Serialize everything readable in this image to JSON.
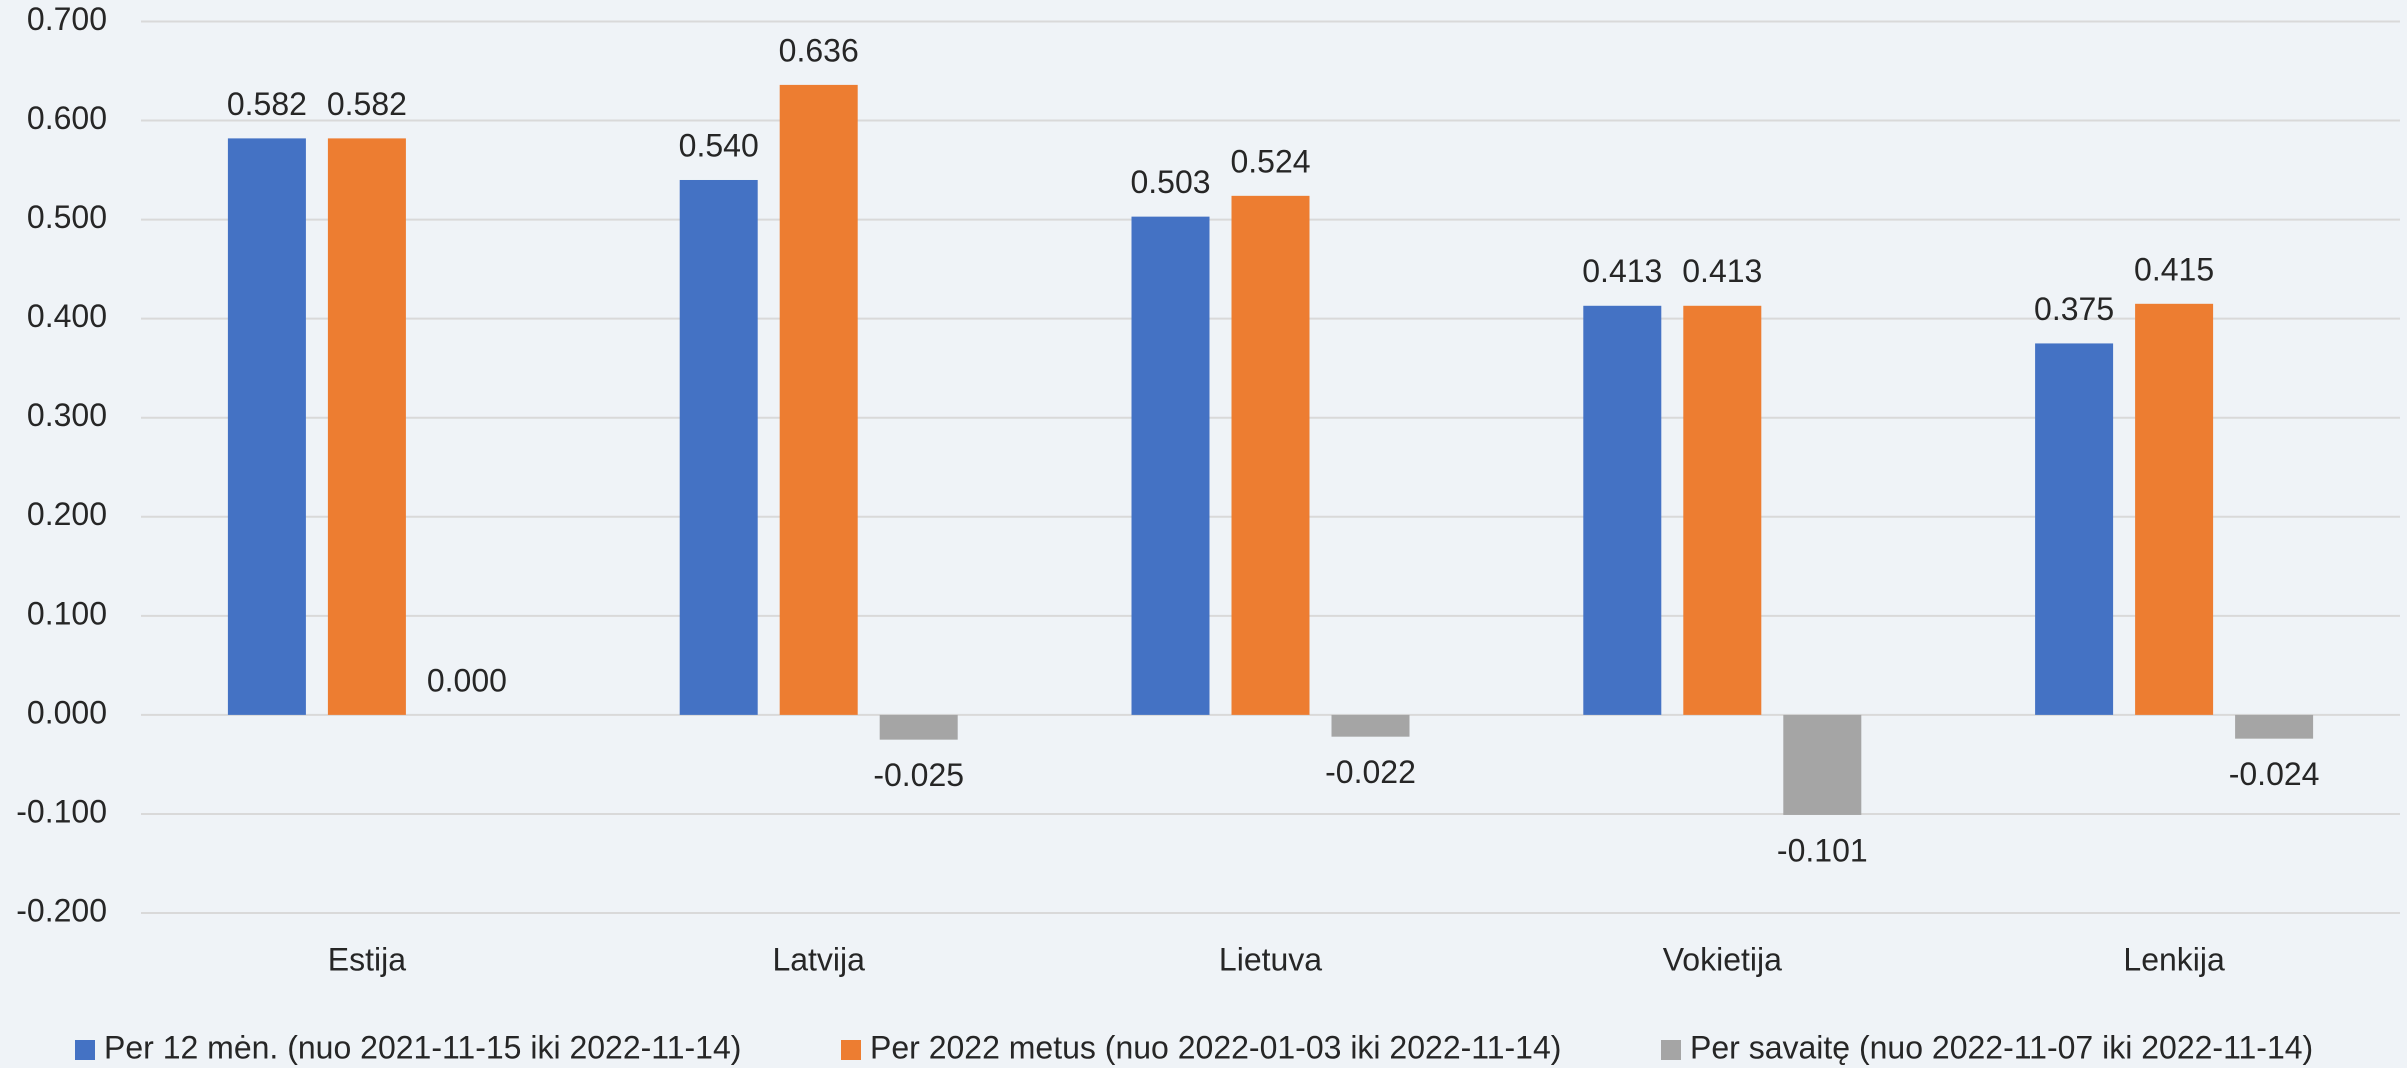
{
  "chart_data": {
    "type": "bar",
    "categories": [
      "Estija",
      "Latvija",
      "Lietuva",
      "Vokietija",
      "Lenkija"
    ],
    "series": [
      {
        "name": "Per 12 mėn. (nuo 2021-11-15 iki 2022-11-14)",
        "color": "#4472c4",
        "values": [
          0.582,
          0.54,
          0.503,
          0.413,
          0.375
        ],
        "value_labels": [
          "0.582",
          "0.540",
          "0.503",
          "0.413",
          "0.375"
        ]
      },
      {
        "name": "Per 2022 metus (nuo 2022-01-03 iki 2022-11-14)",
        "color": "#ed7d31",
        "values": [
          0.582,
          0.636,
          0.524,
          0.413,
          0.415
        ],
        "value_labels": [
          "0.582",
          "0.636",
          "0.524",
          "0.413",
          "0.415"
        ]
      },
      {
        "name": "Per savaitę (nuo 2022-11-07 iki 2022-11-14)",
        "color": "#a5a5a5",
        "values": [
          0,
          -0.025,
          -0.022,
          -0.101,
          -0.024
        ],
        "value_labels": [
          "0.000",
          "-0.025",
          "-0.022",
          "-0.101",
          "-0.024"
        ]
      }
    ],
    "ylim": [
      -0.2,
      0.7
    ],
    "yticks": [
      {
        "value": -0.2,
        "label": "-0.200"
      },
      {
        "value": -0.1,
        "label": "-0.100"
      },
      {
        "value": 0,
        "label": "0.000"
      },
      {
        "value": 0.1,
        "label": "0.100"
      },
      {
        "value": 0.2,
        "label": "0.200"
      },
      {
        "value": 0.3,
        "label": "0.300"
      },
      {
        "value": 0.4,
        "label": "0.400"
      },
      {
        "value": 0.5,
        "label": "0.500"
      },
      {
        "value": 0.6,
        "label": "0.600"
      },
      {
        "value": 0.7,
        "label": "0.700"
      }
    ],
    "grid": true,
    "legend": "bottom"
  }
}
